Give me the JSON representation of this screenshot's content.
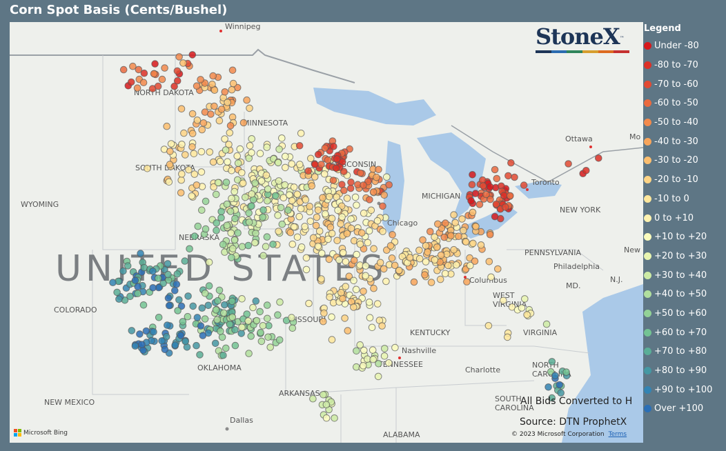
{
  "title": "Corn Spot Basis (Cents/Bushel)",
  "logo": {
    "text": "StoneX",
    "tm": "™",
    "colors": [
      "#1d3557",
      "#2b6cb0",
      "#2f855a",
      "#d69e2e",
      "#dd6b20",
      "#c53030"
    ]
  },
  "map": {
    "big_label": "UNITED STATES",
    "places": [
      "Winnipeg",
      "NORTH DAKOTA",
      "MINNESOTA",
      "SOUTH DAKOTA",
      "WYOMING",
      "NEBRASKA",
      "COLORADO",
      "MISSOURI",
      "OKLAHOMA",
      "KENTUCKY",
      "TENNESSEE",
      "ARKANSAS",
      "NEW MEXICO",
      "Dallas",
      "ALABAMA",
      "Nashville",
      "Charlotte",
      "VIRGINIA",
      "WEST VIRGINIA",
      "Columbus",
      "Chicago",
      "MICHIGAN",
      "Toronto",
      "Ottawa",
      "NEW YORK",
      "PENNSYLVANIA",
      "Philadelphia",
      "MD.",
      "N.J.",
      "New",
      "NORTH CAROLINA",
      "SOUTH CAROLINA",
      "WISCONSIN",
      "Mo"
    ],
    "caption1": "All Bids Converted to H",
    "caption2": "Source: DTN ProphetX",
    "copyright": "© 2023 Microsoft Corporation",
    "terms": "Terms",
    "bing": "Microsoft Bing"
  },
  "legend": {
    "title": "Legend",
    "items": [
      {
        "label": "Under -80",
        "color": "#d7191c"
      },
      {
        "label": "-80 to -70",
        "color": "#dc3027"
      },
      {
        "label": "-70 to -60",
        "color": "#e24a33"
      },
      {
        "label": "-60 to -50",
        "color": "#ea6a3f"
      },
      {
        "label": "-50 to -40",
        "color": "#f28a4c"
      },
      {
        "label": "-40 to -30",
        "color": "#f8a55b"
      },
      {
        "label": "-30 to -20",
        "color": "#fcbe6e"
      },
      {
        "label": "-20 to -10",
        "color": "#fdd485"
      },
      {
        "label": "-10 to 0",
        "color": "#fee79c"
      },
      {
        "label": "0 to +10",
        "color": "#fff3b0"
      },
      {
        "label": "+10 to +20",
        "color": "#fafcbd"
      },
      {
        "label": "+20 to +30",
        "color": "#e8f5b0"
      },
      {
        "label": "+30 to +40",
        "color": "#cdeba5"
      },
      {
        "label": "+40 to +50",
        "color": "#b1df9e"
      },
      {
        "label": "+50 to +60",
        "color": "#93d297"
      },
      {
        "label": "+60 to +70",
        "color": "#73c393"
      },
      {
        "label": "+70 to +80",
        "color": "#5aae97"
      },
      {
        "label": "+80 to +90",
        "color": "#4598a3"
      },
      {
        "label": "+90 to +100",
        "color": "#3384b3"
      },
      {
        "label": "Over +100",
        "color": "#2b6fb6"
      }
    ]
  }
}
